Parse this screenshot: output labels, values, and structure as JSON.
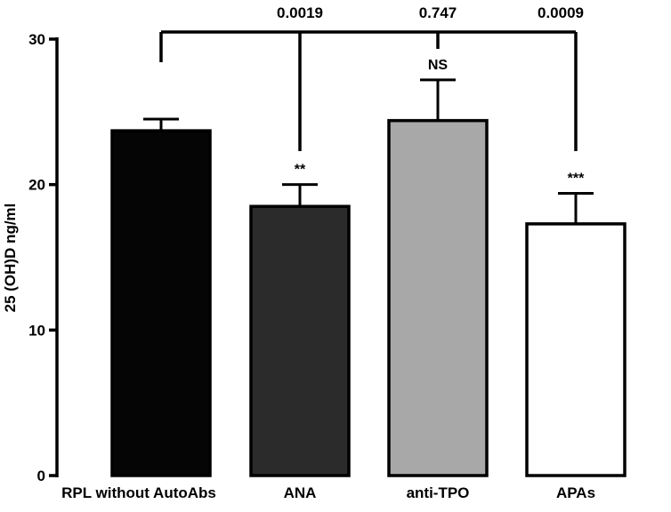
{
  "chart_data": {
    "type": "bar",
    "title": "",
    "xlabel": "",
    "ylabel": "25 (OH)D ng/ml",
    "ylim": [
      0,
      30
    ],
    "yticks": [
      0,
      10,
      20,
      30
    ],
    "categories": [
      "RPL without AutoAbs",
      "ANA",
      "anti-TPO",
      "APAs"
    ],
    "values": [
      23.7,
      18.5,
      24.4,
      17.3
    ],
    "errors": [
      0.8,
      1.5,
      2.8,
      2.1
    ],
    "bar_colors": [
      "#050505",
      "#2b2b2b",
      "#a8a8a8",
      "#ffffff"
    ],
    "significance": [
      "",
      "**",
      "NS",
      "***"
    ],
    "comparisons": [
      {
        "target": "ANA",
        "p": "0.0019"
      },
      {
        "target": "anti-TPO",
        "p": "0.747"
      },
      {
        "target": "APAs",
        "p": "0.0009"
      }
    ]
  }
}
